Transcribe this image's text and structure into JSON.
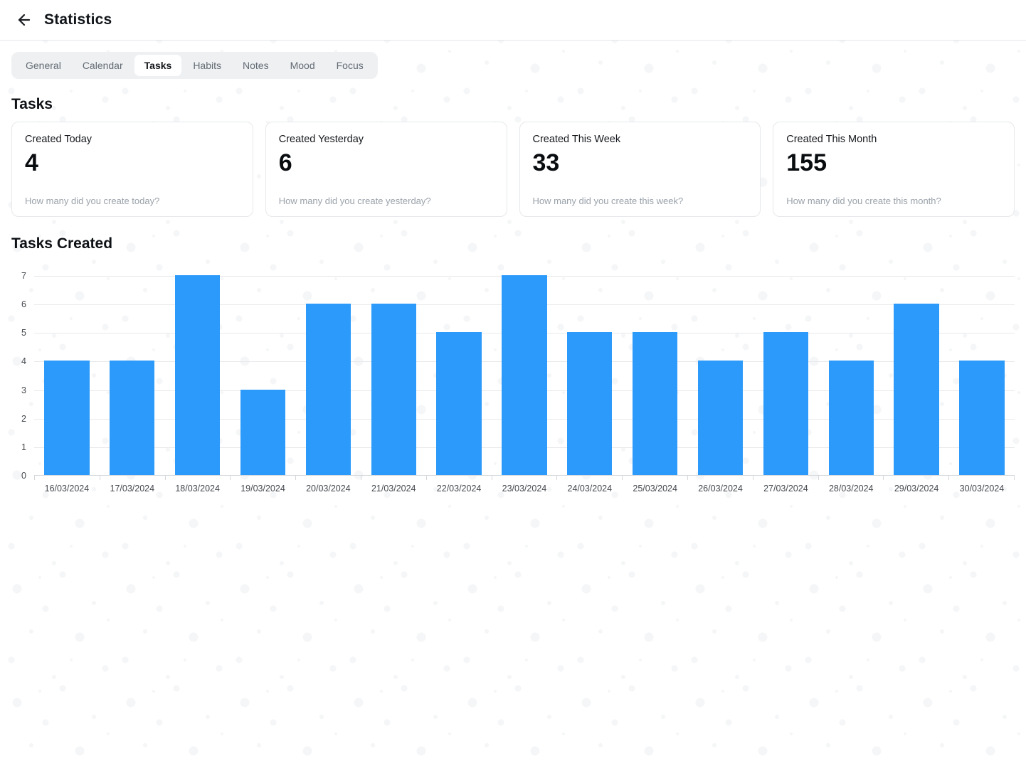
{
  "header": {
    "title": "Statistics"
  },
  "tabs": [
    {
      "label": "General",
      "active": false
    },
    {
      "label": "Calendar",
      "active": false
    },
    {
      "label": "Tasks",
      "active": true
    },
    {
      "label": "Habits",
      "active": false
    },
    {
      "label": "Notes",
      "active": false
    },
    {
      "label": "Mood",
      "active": false
    },
    {
      "label": "Focus",
      "active": false
    }
  ],
  "sections": {
    "tasks_heading": "Tasks",
    "chart_heading": "Tasks Created"
  },
  "stat_cards": [
    {
      "title": "Created Today",
      "value": "4",
      "subtitle": "How many did you create today?"
    },
    {
      "title": "Created Yesterday",
      "value": "6",
      "subtitle": "How many did you create yesterday?"
    },
    {
      "title": "Created This Week",
      "value": "33",
      "subtitle": "How many did you create this week?"
    },
    {
      "title": "Created This Month",
      "value": "155",
      "subtitle": "How many did you create this month?"
    }
  ],
  "chart_data": {
    "type": "bar",
    "title": "Tasks Created",
    "categories": [
      "16/03/2024",
      "17/03/2024",
      "18/03/2024",
      "19/03/2024",
      "20/03/2024",
      "21/03/2024",
      "22/03/2024",
      "23/03/2024",
      "24/03/2024",
      "25/03/2024",
      "26/03/2024",
      "27/03/2024",
      "28/03/2024",
      "29/03/2024",
      "30/03/2024"
    ],
    "values": [
      4,
      4,
      7,
      3,
      6,
      6,
      5,
      7,
      5,
      5,
      4,
      5,
      4,
      6,
      4
    ],
    "xlabel": "",
    "ylabel": "",
    "ylim": [
      0,
      7
    ],
    "ytick_step": 1,
    "grid": true,
    "legend": "none",
    "bar_color": "#2b9afa"
  },
  "colors": {
    "accent": "#2b9afa",
    "header_border": "#e3e8ec",
    "tab_bar_bg": "#eef0f2",
    "tab_inactive_text": "#636b74",
    "tab_active_text": "#15181c",
    "card_border": "#e6e8eb",
    "card_subtitle": "#9aa2aa",
    "gridline": "#e8e9eb",
    "axis_line": "#d5d8db",
    "axis_text": "#45494e"
  }
}
